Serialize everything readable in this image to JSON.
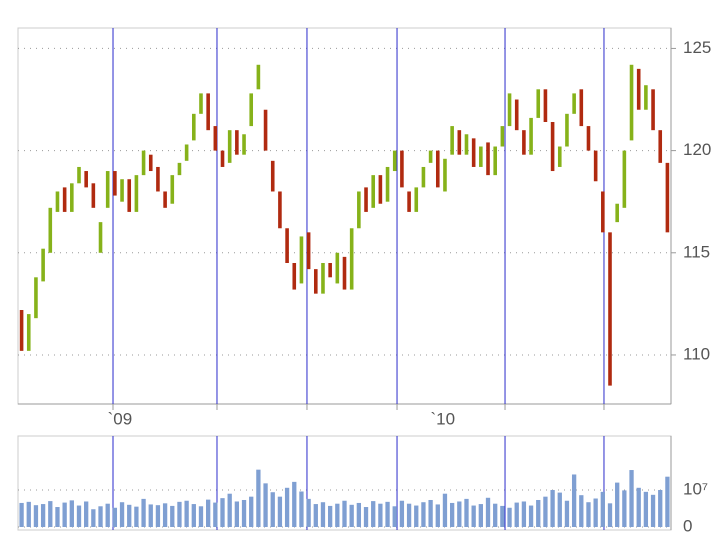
{
  "chart_data": {
    "type": "ohlc",
    "up_color": "#86b21a",
    "down_color": "#b02a10",
    "volume_color": "#7f9fd2",
    "line_color": "#2a2acc",
    "xlim": [
      0,
      91
    ],
    "xticks": [
      13.24,
      27.73,
      40.27,
      52.82,
      67.87,
      81.66
    ],
    "xlabels": [
      {
        "value": 14.2,
        "label": "`09"
      },
      {
        "value": 59.2,
        "label": "`10"
      }
    ],
    "ylim": [
      107.6,
      126
    ],
    "yticks": [
      110,
      115,
      120,
      125
    ],
    "grid": true,
    "open": [
      112.2,
      110.2,
      111.8,
      113.6,
      115.0,
      117.0,
      118.2,
      117.0,
      118.4,
      119.0,
      118.4,
      115.0,
      117.2,
      119.0,
      117.5,
      118.6,
      117.0,
      118.8,
      119.8,
      119.2,
      118.0,
      117.4,
      118.8,
      119.5,
      120.5,
      121.8,
      122.8,
      121.2,
      120.0,
      119.4,
      121.0,
      119.8,
      121.2,
      123.0,
      122.0,
      119.5,
      118.0,
      116.2,
      114.5,
      113.5,
      116.0,
      114.2,
      113.0,
      114.5,
      113.5,
      114.8,
      113.2,
      116.2,
      118.2,
      117.2,
      118.8,
      117.5,
      119.0,
      120.0,
      118.0,
      117.0,
      118.2,
      119.4,
      120.0,
      118.0,
      119.8,
      121.0,
      119.8,
      120.6,
      119.2,
      120.4,
      118.8,
      120.2,
      121.2,
      122.5,
      121.0,
      119.8,
      121.6,
      123.0,
      121.4,
      119.2,
      120.2,
      121.8,
      123.0,
      121.2,
      120.0,
      118.0,
      116.0,
      116.5,
      117.2,
      120.5,
      124.0,
      122.0,
      123.0,
      121.0,
      119.4
    ],
    "close": [
      110.2,
      112.0,
      113.8,
      115.2,
      117.2,
      118.0,
      117.0,
      118.4,
      119.2,
      118.2,
      117.2,
      116.5,
      119.0,
      117.8,
      118.6,
      117.0,
      118.8,
      120.0,
      119.0,
      118.0,
      117.2,
      118.8,
      119.4,
      120.3,
      121.8,
      122.8,
      121.0,
      120.0,
      119.2,
      121.0,
      119.8,
      120.8,
      122.8,
      124.2,
      120.0,
      118.0,
      116.2,
      114.5,
      113.2,
      115.8,
      114.2,
      113.0,
      114.5,
      113.8,
      115.0,
      113.2,
      116.2,
      118.0,
      117.0,
      118.8,
      117.4,
      119.2,
      120.0,
      118.2,
      117.0,
      118.2,
      119.2,
      120.0,
      118.2,
      119.6,
      121.2,
      119.8,
      120.8,
      119.2,
      120.2,
      118.8,
      120.2,
      121.2,
      122.8,
      121.0,
      119.8,
      121.6,
      123.0,
      121.4,
      119.0,
      120.2,
      121.8,
      122.8,
      121.2,
      120.0,
      118.5,
      116.0,
      108.5,
      117.4,
      120.0,
      124.2,
      122.0,
      123.2,
      121.0,
      119.4,
      116.0
    ],
    "volume": [
      6500000,
      6800000,
      5900000,
      6200000,
      7000000,
      5400000,
      6600000,
      7200000,
      5800000,
      6900000,
      4800000,
      5600000,
      6300000,
      5200000,
      6700000,
      6000000,
      5500000,
      7600000,
      6100000,
      5900000,
      6400000,
      5700000,
      6800000,
      7100000,
      6200000,
      5600000,
      7400000,
      6600000,
      7800000,
      9000000,
      6900000,
      7300000,
      8200000,
      15500000,
      11800000,
      9400000,
      8200000,
      10600000,
      12200000,
      9600000,
      7600000,
      6200000,
      6700000,
      5700000,
      6300000,
      7100000,
      6000000,
      6500000,
      5400000,
      7000000,
      6300000,
      6800000,
      5600000,
      7100000,
      6300000,
      5800000,
      6700000,
      7300000,
      6100000,
      9000000,
      6500000,
      6900000,
      7600000,
      5800000,
      6200000,
      7900000,
      6300000,
      5700000,
      5200000,
      6600000,
      6900000,
      5800000,
      7300000,
      8200000,
      10000000,
      9300000,
      7100000,
      14200000,
      8600000,
      6700000,
      7700000,
      9500000,
      6400000,
      12000000,
      9900000,
      15400000,
      10600000,
      9500000,
      8700000,
      10000000,
      13600000
    ],
    "vlim": [
      0,
      24600000
    ],
    "vticks": [
      0,
      {
        "value": 10000000,
        "label": "10⁷"
      }
    ]
  }
}
